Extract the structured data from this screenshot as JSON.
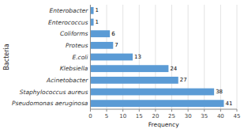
{
  "chart_data": {
    "type": "bar",
    "orientation": "horizontal",
    "categories": [
      "Pseudomonas aeruginosa",
      "Staphylococcus aureus",
      "Acinetobacter",
      "Klebsiella",
      "E.coli",
      "Proteus",
      "Coliforms",
      "Enterococcus",
      "Enterobacter"
    ],
    "values": [
      41,
      38,
      27,
      24,
      13,
      7,
      6,
      1,
      1
    ],
    "color": "#5b9bd5",
    "xlabel": "Frequency",
    "ylabel": "Bacteria",
    "xlim": [
      0,
      45
    ],
    "xticks": [
      0,
      5,
      10,
      15,
      20,
      25,
      30,
      35,
      40,
      45
    ],
    "grid": true,
    "data_labels": true
  }
}
